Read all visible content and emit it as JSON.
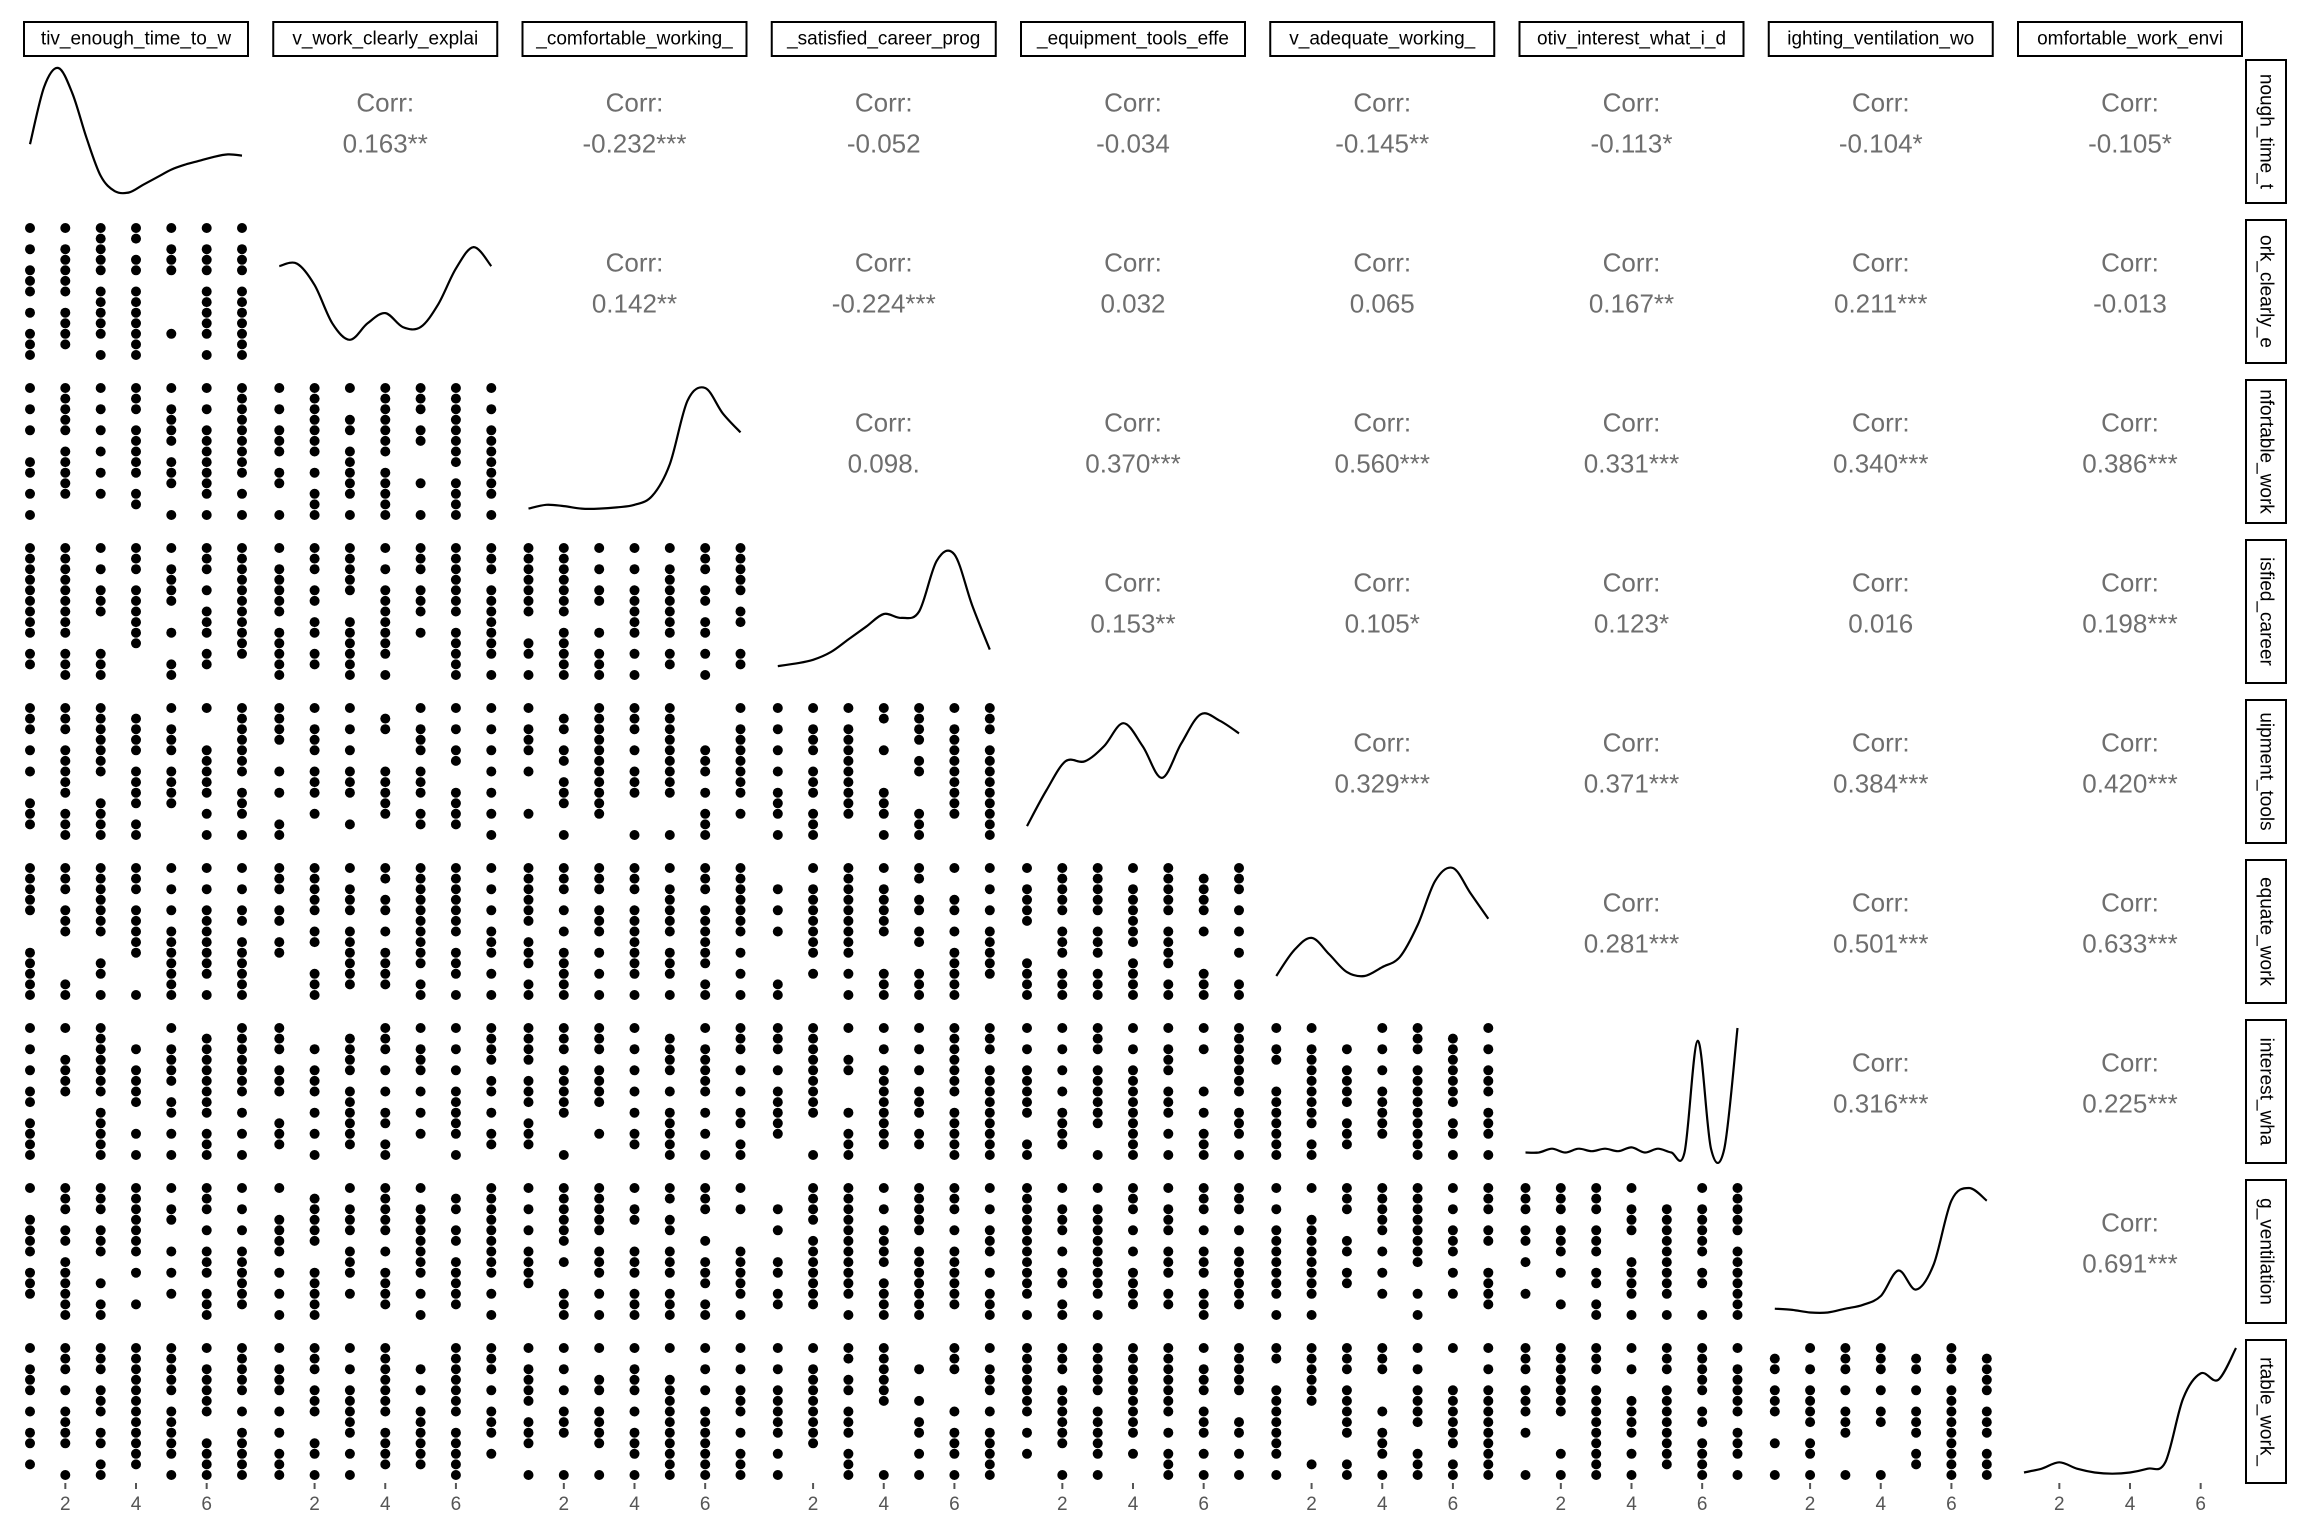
{
  "chart_data": {
    "type": "scatter-matrix",
    "title": "",
    "variables": [
      "motiv_enough_time_to_work",
      "motiv_work_clearly_explained",
      "motiv_comfortable_working",
      "motiv_satisfied_career_progress",
      "motiv_equipment_tools_effective",
      "motiv_adequate_working",
      "motiv_interest_what_i_do",
      "motiv_lighting_ventilation_work",
      "motiv_comfortable_work_environment"
    ],
    "column_strip_labels": [
      "tiv_enough_time_to_w",
      "v_work_clearly_explai",
      "_comfortable_working_",
      "_satisfied_career_prog",
      "_equipment_tools_effe",
      "v_adequate_working_",
      "otiv_interest_what_i_d",
      "ighting_ventilation_wo",
      "omfortable_work_envi"
    ],
    "row_strip_labels": [
      "nough_time_t",
      "ork_clearly_e",
      "nfortable_work",
      "isfied_career",
      "uipment_tools",
      "equate_work",
      "interest_wha",
      "g_ventilation",
      "rtable_work_"
    ],
    "corr_label": "Corr:",
    "correlations": [
      {
        "row": 0,
        "col": 1,
        "value": "0.163**"
      },
      {
        "row": 0,
        "col": 2,
        "value": "-0.232***"
      },
      {
        "row": 0,
        "col": 3,
        "value": "-0.052"
      },
      {
        "row": 0,
        "col": 4,
        "value": "-0.034"
      },
      {
        "row": 0,
        "col": 5,
        "value": "-0.145**"
      },
      {
        "row": 0,
        "col": 6,
        "value": "-0.113*"
      },
      {
        "row": 0,
        "col": 7,
        "value": "-0.104*"
      },
      {
        "row": 0,
        "col": 8,
        "value": "-0.105*"
      },
      {
        "row": 1,
        "col": 2,
        "value": "0.142**"
      },
      {
        "row": 1,
        "col": 3,
        "value": "-0.224***"
      },
      {
        "row": 1,
        "col": 4,
        "value": "0.032"
      },
      {
        "row": 1,
        "col": 5,
        "value": "0.065"
      },
      {
        "row": 1,
        "col": 6,
        "value": "0.167**"
      },
      {
        "row": 1,
        "col": 7,
        "value": "0.211***"
      },
      {
        "row": 1,
        "col": 8,
        "value": "-0.013"
      },
      {
        "row": 2,
        "col": 3,
        "value": "0.098."
      },
      {
        "row": 2,
        "col": 4,
        "value": "0.370***"
      },
      {
        "row": 2,
        "col": 5,
        "value": "0.560***"
      },
      {
        "row": 2,
        "col": 6,
        "value": "0.331***"
      },
      {
        "row": 2,
        "col": 7,
        "value": "0.340***"
      },
      {
        "row": 2,
        "col": 8,
        "value": "0.386***"
      },
      {
        "row": 3,
        "col": 4,
        "value": "0.153**"
      },
      {
        "row": 3,
        "col": 5,
        "value": "0.105*"
      },
      {
        "row": 3,
        "col": 6,
        "value": "0.123*"
      },
      {
        "row": 3,
        "col": 7,
        "value": "0.016"
      },
      {
        "row": 3,
        "col": 8,
        "value": "0.198***"
      },
      {
        "row": 4,
        "col": 5,
        "value": "0.329***"
      },
      {
        "row": 4,
        "col": 6,
        "value": "0.371***"
      },
      {
        "row": 4,
        "col": 7,
        "value": "0.384***"
      },
      {
        "row": 4,
        "col": 8,
        "value": "0.420***"
      },
      {
        "row": 5,
        "col": 6,
        "value": "0.281***"
      },
      {
        "row": 5,
        "col": 7,
        "value": "0.501***"
      },
      {
        "row": 5,
        "col": 8,
        "value": "0.633***"
      },
      {
        "row": 6,
        "col": 7,
        "value": "0.316***"
      },
      {
        "row": 6,
        "col": 8,
        "value": "0.225***"
      },
      {
        "row": 7,
        "col": 8,
        "value": "0.691***"
      }
    ],
    "densities": [
      [
        0.4,
        0.85,
        1.0,
        0.8,
        0.45,
        0.15,
        0.03,
        0.02,
        0.08,
        0.14,
        0.2,
        0.24,
        0.27,
        0.3,
        0.32,
        0.31
      ],
      [
        0.7,
        0.72,
        0.55,
        0.25,
        0.12,
        0.25,
        0.33,
        0.22,
        0.22,
        0.4,
        0.68,
        0.85,
        0.7
      ],
      [
        0.05,
        0.08,
        0.07,
        0.05,
        0.05,
        0.06,
        0.08,
        0.15,
        0.4,
        0.9,
        1.0,
        0.8,
        0.65
      ],
      [
        0.07,
        0.09,
        0.12,
        0.18,
        0.28,
        0.38,
        0.48,
        0.45,
        0.5,
        0.9,
        0.95,
        0.55,
        0.2
      ],
      [
        0.07,
        0.35,
        0.58,
        0.58,
        0.7,
        0.88,
        0.7,
        0.45,
        0.72,
        0.95,
        0.9,
        0.8
      ],
      [
        0.15,
        0.35,
        0.45,
        0.32,
        0.18,
        0.15,
        0.22,
        0.3,
        0.55,
        0.9,
        1.0,
        0.8,
        0.6
      ],
      [
        0.02,
        0.02,
        0.05,
        0.02,
        0.05,
        0.03,
        0.05,
        0.03,
        0.06,
        0.02,
        0.05,
        0.02,
        0.02,
        0.9,
        0.05,
        0.05,
        1.0
      ],
      [
        0.05,
        0.04,
        0.02,
        0.02,
        0.05,
        0.08,
        0.15,
        0.35,
        0.2,
        0.4,
        0.9,
        1.0,
        0.9
      ],
      [
        0.02,
        0.05,
        0.1,
        0.05,
        0.02,
        0.01,
        0.02,
        0.05,
        0.1,
        0.6,
        0.8,
        0.75,
        1.0
      ]
    ],
    "x_range": [
      1,
      7
    ],
    "y_range": [
      1,
      7
    ],
    "x_ticks": [
      2,
      4,
      6
    ],
    "point_style": "filled circles on an integer Likert 1-7 grid",
    "grid": false
  }
}
